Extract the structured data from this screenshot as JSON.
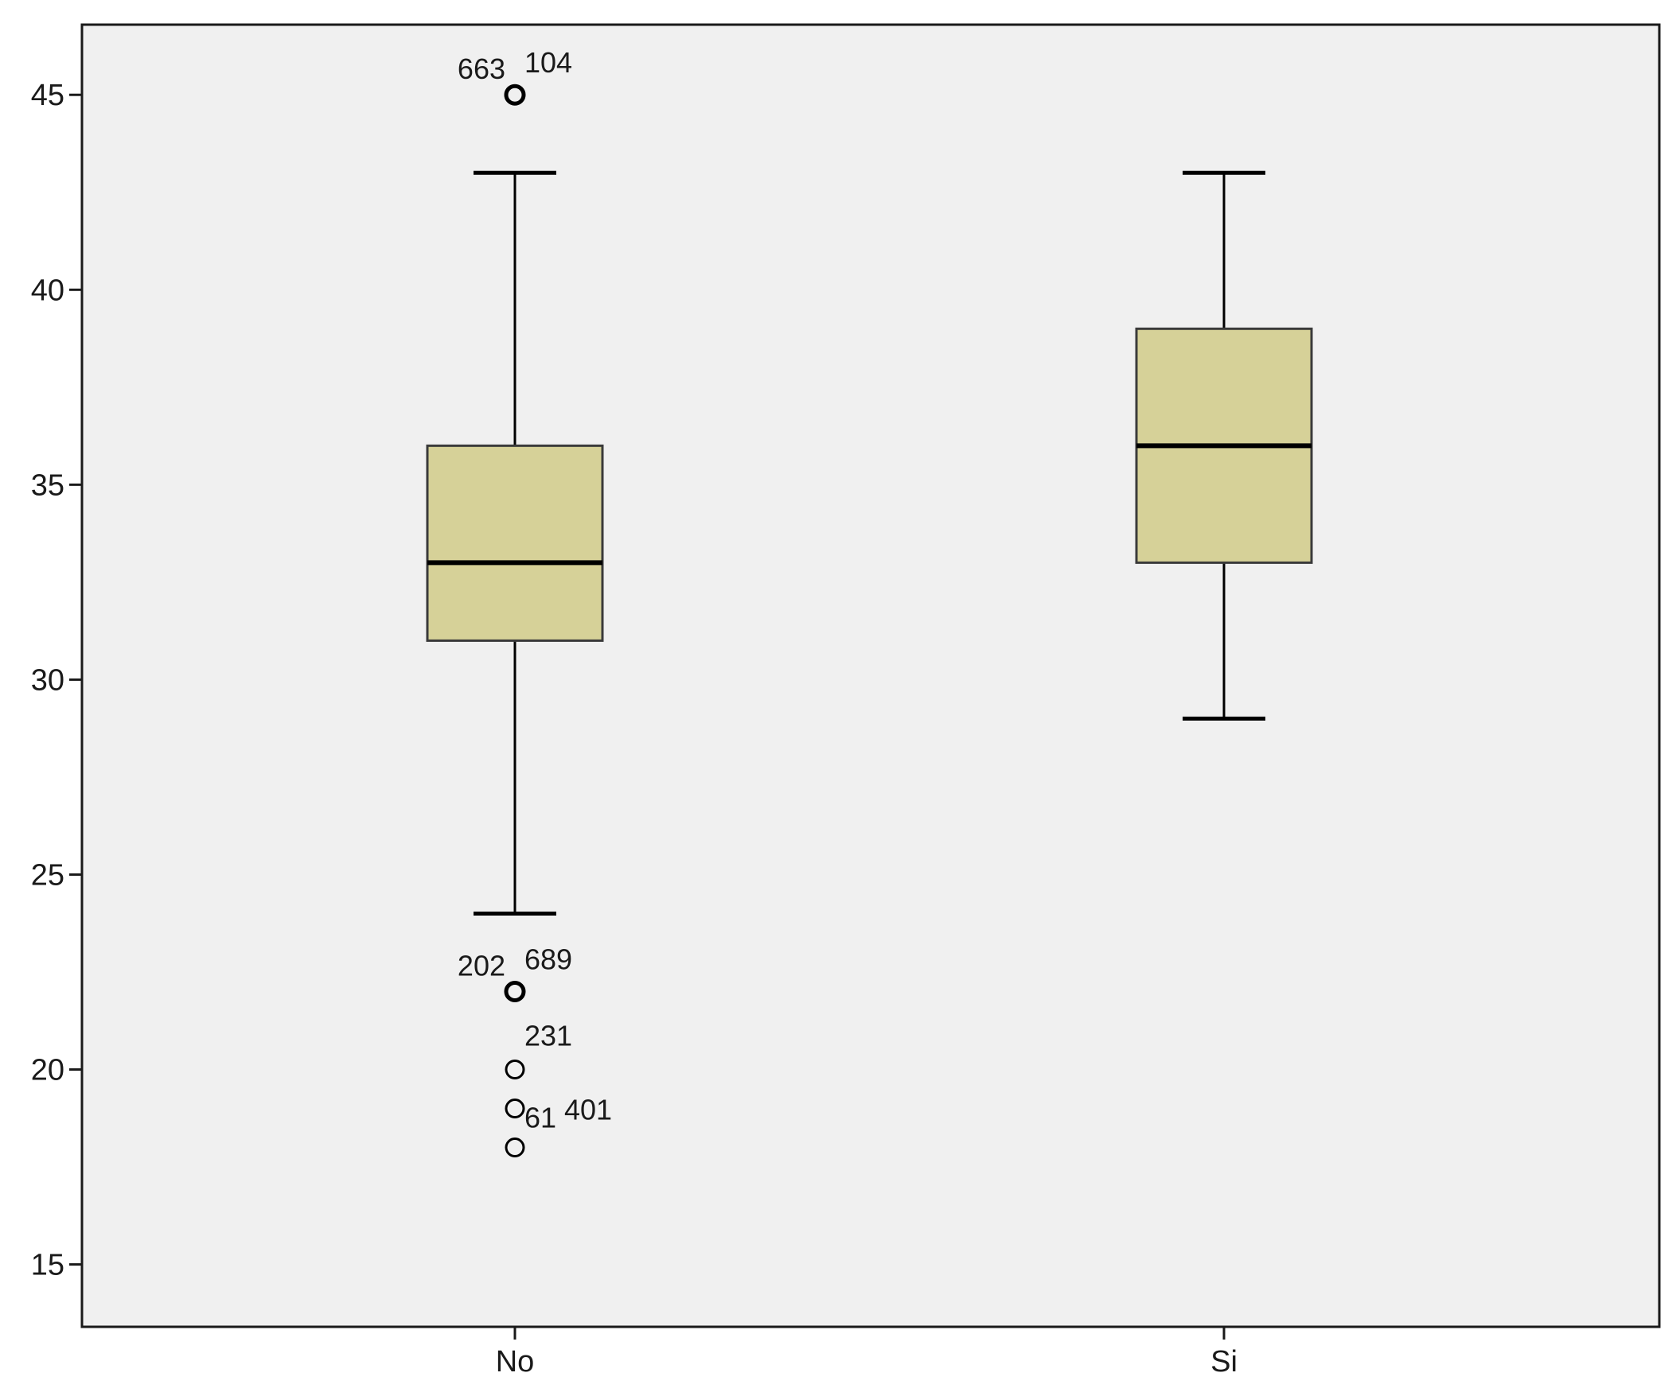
{
  "chart_data": {
    "type": "boxplot",
    "title": "",
    "xlabel": "",
    "ylabel": "",
    "ylim": [
      13.4,
      46.8
    ],
    "yticks": [
      15,
      20,
      25,
      30,
      35,
      40,
      45
    ],
    "grid": false,
    "legend": "none",
    "colors": {
      "plot_bg": "#f0f0f0",
      "box_fill": "#d6d198",
      "line": "#000000"
    },
    "categories": [
      "No",
      "Si"
    ],
    "boxes": [
      {
        "category": "No",
        "whisker_low": 24,
        "q1": 31,
        "median": 33,
        "q3": 36,
        "whisker_high": 43,
        "outliers": [
          {
            "value": 45,
            "labels": [
              "663",
              "104"
            ]
          },
          {
            "value": 22,
            "labels": [
              "202",
              "689"
            ]
          },
          {
            "value": 20,
            "labels": [
              "231"
            ]
          },
          {
            "value": 19,
            "labels": [
              "61",
              "401"
            ]
          },
          {
            "value": 18,
            "labels": []
          }
        ]
      },
      {
        "category": "Si",
        "whisker_low": 29,
        "q1": 33,
        "median": 36,
        "q3": 39,
        "whisker_high": 43,
        "outliers": []
      }
    ]
  }
}
